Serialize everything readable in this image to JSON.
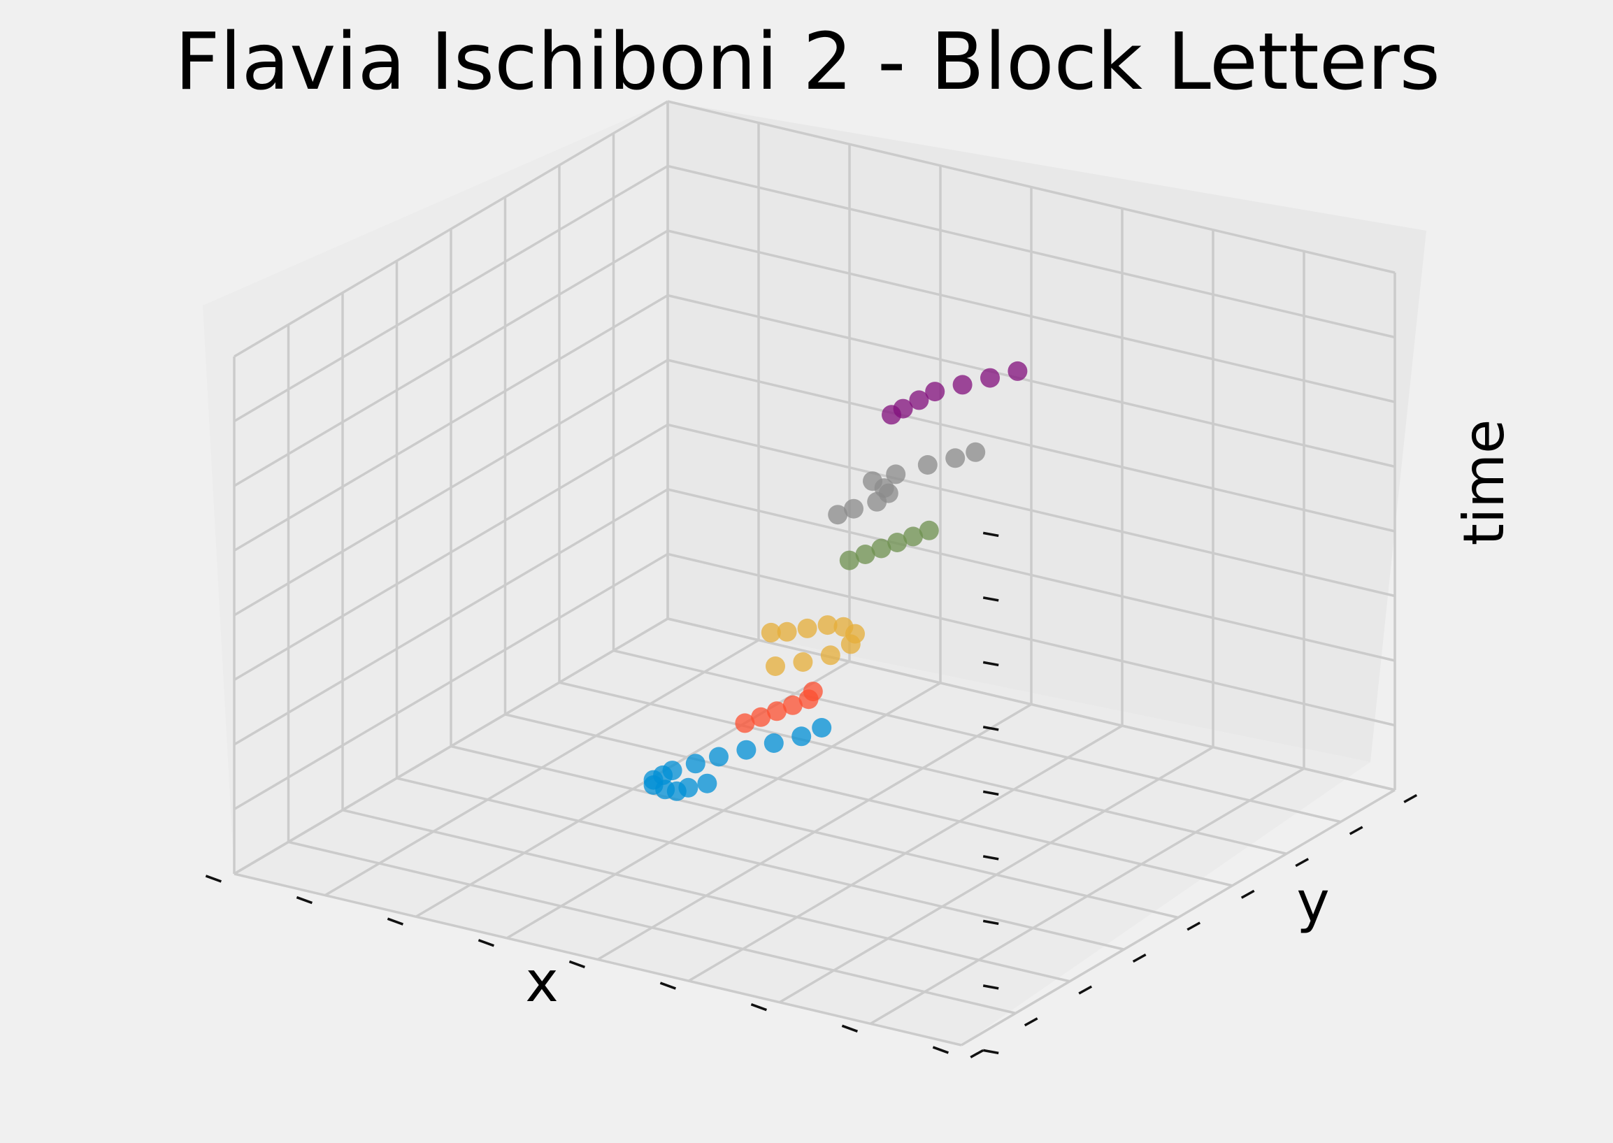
{
  "chart_data": {
    "type": "scatter",
    "projection": "3d",
    "title": "Flavia Ischiboni 2 - Block Letters",
    "xlabel": "x",
    "ylabel": "y",
    "zlabel": "time",
    "grid": true,
    "tick_labels_visible": false,
    "colors": {
      "background": "#f0f0f0",
      "pane": "#ebebeb",
      "grid": "#cbcbcb"
    },
    "series": [
      {
        "color": "#008fd5",
        "points": [
          [
            0.42,
            0.4,
            0.1
          ],
          [
            0.41,
            0.38,
            0.09
          ],
          [
            0.4,
            0.37,
            0.085
          ],
          [
            0.39,
            0.36,
            0.09
          ],
          [
            0.38,
            0.35,
            0.1
          ],
          [
            0.38,
            0.35,
            0.11
          ],
          [
            0.385,
            0.36,
            0.12
          ],
          [
            0.39,
            0.37,
            0.13
          ],
          [
            0.41,
            0.39,
            0.14
          ],
          [
            0.43,
            0.41,
            0.15
          ],
          [
            0.46,
            0.43,
            0.155
          ],
          [
            0.49,
            0.45,
            0.16
          ],
          [
            0.52,
            0.47,
            0.165
          ],
          [
            0.55,
            0.48,
            0.17
          ]
        ]
      },
      {
        "color": "#fc4f30",
        "points": [
          [
            0.44,
            0.44,
            0.22
          ],
          [
            0.46,
            0.45,
            0.225
          ],
          [
            0.48,
            0.46,
            0.23
          ],
          [
            0.5,
            0.47,
            0.235
          ],
          [
            0.52,
            0.48,
            0.24
          ],
          [
            0.53,
            0.48,
            0.25
          ]
        ]
      },
      {
        "color": "#e5ae38",
        "points": [
          [
            0.46,
            0.47,
            0.33
          ],
          [
            0.49,
            0.49,
            0.33
          ],
          [
            0.52,
            0.51,
            0.335
          ],
          [
            0.55,
            0.52,
            0.345
          ],
          [
            0.56,
            0.52,
            0.36
          ],
          [
            0.55,
            0.51,
            0.375
          ],
          [
            0.53,
            0.5,
            0.385
          ],
          [
            0.5,
            0.49,
            0.39
          ],
          [
            0.47,
            0.48,
            0.395
          ],
          [
            0.45,
            0.47,
            0.4
          ]
        ]
      },
      {
        "color": "#6d904f",
        "points": [
          [
            0.53,
            0.53,
            0.52
          ],
          [
            0.55,
            0.54,
            0.525
          ],
          [
            0.57,
            0.55,
            0.53
          ],
          [
            0.59,
            0.56,
            0.535
          ],
          [
            0.61,
            0.57,
            0.54
          ],
          [
            0.63,
            0.58,
            0.545
          ]
        ]
      },
      {
        "color": "#8b8b8b",
        "points": [
          [
            0.52,
            0.52,
            0.61
          ],
          [
            0.54,
            0.53,
            0.615
          ],
          [
            0.56,
            0.55,
            0.625
          ],
          [
            0.57,
            0.56,
            0.64
          ],
          [
            0.56,
            0.56,
            0.655
          ],
          [
            0.55,
            0.55,
            0.67
          ],
          [
            0.57,
            0.57,
            0.68
          ],
          [
            0.61,
            0.59,
            0.685
          ],
          [
            0.64,
            0.61,
            0.69
          ],
          [
            0.67,
            0.62,
            0.69
          ]
        ]
      },
      {
        "color": "#810f7c",
        "points": [
          [
            0.56,
            0.57,
            0.8
          ],
          [
            0.57,
            0.58,
            0.81
          ],
          [
            0.59,
            0.59,
            0.82
          ],
          [
            0.61,
            0.6,
            0.83
          ],
          [
            0.64,
            0.62,
            0.835
          ],
          [
            0.67,
            0.64,
            0.84
          ],
          [
            0.7,
            0.66,
            0.845
          ]
        ]
      }
    ]
  }
}
